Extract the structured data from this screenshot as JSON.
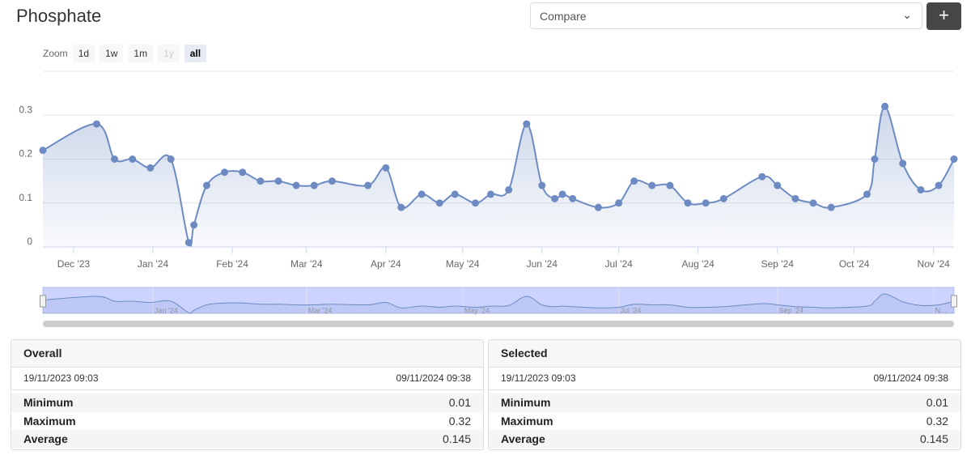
{
  "header": {
    "title": "Phosphate",
    "compare": "Compare",
    "add": "+"
  },
  "zoom": {
    "label": "Zoom",
    "buttons": [
      "1d",
      "1w",
      "1m",
      "1y",
      "all"
    ],
    "selected": "all",
    "disabled": "1y"
  },
  "chart_data": {
    "type": "area",
    "color": "#6d8bc2",
    "grid": true,
    "x": [
      "2023-11-19",
      "2023-12-10",
      "2023-12-17",
      "2023-12-24",
      "2023-12-31",
      "2024-01-08",
      "2024-01-15",
      "2024-01-17",
      "2024-01-22",
      "2024-01-29",
      "2024-02-05",
      "2024-02-12",
      "2024-02-19",
      "2024-02-26",
      "2024-03-04",
      "2024-03-11",
      "2024-03-25",
      "2024-04-01",
      "2024-04-07",
      "2024-04-15",
      "2024-04-22",
      "2024-04-28",
      "2024-05-06",
      "2024-05-12",
      "2024-05-19",
      "2024-05-26",
      "2024-06-01",
      "2024-06-06",
      "2024-06-09",
      "2024-06-13",
      "2024-06-23",
      "2024-07-01",
      "2024-07-07",
      "2024-07-14",
      "2024-07-21",
      "2024-07-28",
      "2024-08-04",
      "2024-08-11",
      "2024-08-26",
      "2024-09-01",
      "2024-09-08",
      "2024-09-15",
      "2024-09-22",
      "2024-10-06",
      "2024-10-09",
      "2024-10-13",
      "2024-10-20",
      "2024-10-27",
      "2024-11-03",
      "2024-11-09"
    ],
    "values": [
      0.22,
      0.28,
      0.2,
      0.2,
      0.18,
      0.2,
      0.01,
      0.05,
      0.14,
      0.17,
      0.17,
      0.15,
      0.15,
      0.14,
      0.14,
      0.15,
      0.14,
      0.18,
      0.09,
      0.12,
      0.1,
      0.12,
      0.1,
      0.12,
      0.13,
      0.28,
      0.14,
      0.11,
      0.12,
      0.11,
      0.09,
      0.1,
      0.15,
      0.14,
      0.14,
      0.1,
      0.1,
      0.11,
      0.16,
      0.14,
      0.11,
      0.1,
      0.09,
      0.12,
      0.2,
      0.32,
      0.19,
      0.13,
      0.14,
      0.2
    ],
    "xlim": [
      "2023-11-19",
      "2024-11-09"
    ],
    "xticks": [
      {
        "value": "2023-12-01",
        "label": "Dec '23"
      },
      {
        "value": "2024-01-01",
        "label": "Jan '24"
      },
      {
        "value": "2024-02-01",
        "label": "Feb '24"
      },
      {
        "value": "2024-03-01",
        "label": "Mar '24"
      },
      {
        "value": "2024-04-01",
        "label": "Apr '24"
      },
      {
        "value": "2024-05-01",
        "label": "May '24"
      },
      {
        "value": "2024-06-01",
        "label": "Jun '24"
      },
      {
        "value": "2024-07-01",
        "label": "Jul '24"
      },
      {
        "value": "2024-08-01",
        "label": "Aug '24"
      },
      {
        "value": "2024-09-01",
        "label": "Sep '24"
      },
      {
        "value": "2024-10-01",
        "label": "Oct '24"
      },
      {
        "value": "2024-11-01",
        "label": "Nov '24"
      }
    ],
    "ylim": [
      0,
      0.4
    ],
    "yticks": [
      0,
      0.1,
      0.2,
      0.3
    ],
    "navigator_ticks": [
      {
        "value": "2024-01-01",
        "label": "Jan '24"
      },
      {
        "value": "2024-03-01",
        "label": "Mar '24"
      },
      {
        "value": "2024-05-01",
        "label": "May '24"
      },
      {
        "value": "2024-07-01",
        "label": "Jul '24"
      },
      {
        "value": "2024-09-01",
        "label": "Sep '24"
      },
      {
        "value": "2024-11-01",
        "label": "N..."
      }
    ]
  },
  "stats": [
    {
      "title": "Overall",
      "start": "19/11/2023 09:03",
      "end": "09/11/2024 09:38",
      "rows": [
        [
          "Minimum",
          "0.01"
        ],
        [
          "Maximum",
          "0.32"
        ],
        [
          "Average",
          "0.145"
        ]
      ]
    },
    {
      "title": "Selected",
      "start": "19/11/2023 09:03",
      "end": "09/11/2024 09:38",
      "rows": [
        [
          "Minimum",
          "0.01"
        ],
        [
          "Maximum",
          "0.32"
        ],
        [
          "Average",
          "0.145"
        ]
      ]
    }
  ]
}
